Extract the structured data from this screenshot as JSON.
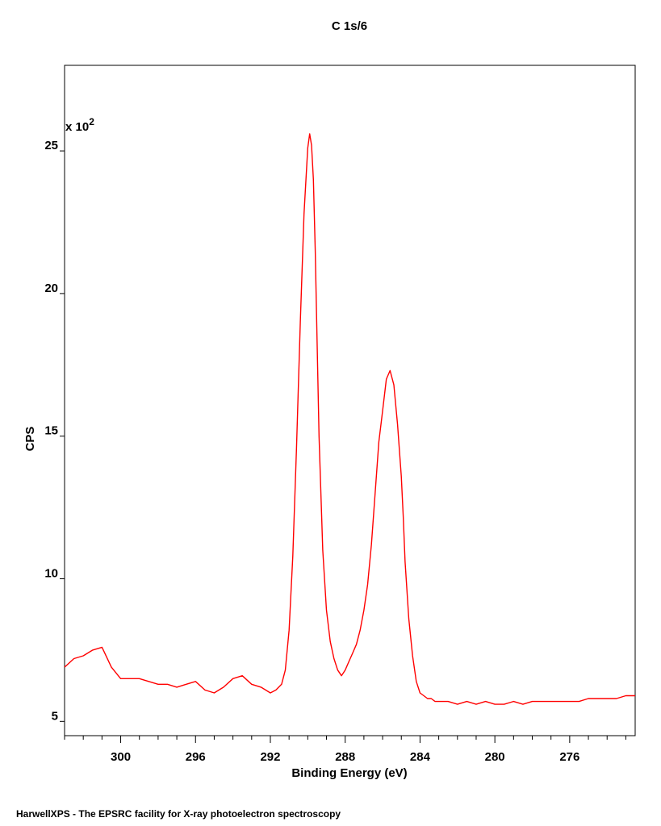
{
  "chart_data": {
    "type": "line",
    "title": "C 1s/6",
    "xlabel": "Binding Energy (eV)",
    "ylabel": "CPS",
    "y_multiplier_base": "x 10",
    "y_multiplier_exp": "2",
    "xlim": [
      303.0,
      272.5
    ],
    "ylim": [
      4.5,
      28.0
    ],
    "x_ticks": [
      300,
      296,
      292,
      288,
      284,
      280,
      276
    ],
    "x_tick_labels": [
      "300",
      "296",
      "292",
      "288",
      "284",
      "280",
      "276"
    ],
    "y_ticks": [
      5,
      10,
      15,
      20,
      25
    ],
    "y_tick_labels": [
      "5",
      "10",
      "15",
      "20",
      "25"
    ],
    "grid": false,
    "series": [
      {
        "color": "#ff0000",
        "x": [
          303.0,
          302.5,
          302.0,
          301.5,
          301.0,
          300.5,
          300.0,
          299.5,
          299.0,
          298.5,
          298.0,
          297.5,
          297.0,
          296.5,
          296.0,
          295.5,
          295.0,
          294.5,
          294.0,
          293.5,
          293.0,
          292.5,
          292.0,
          291.7,
          291.4,
          291.2,
          291.0,
          290.8,
          290.6,
          290.4,
          290.2,
          290.0,
          289.9,
          289.8,
          289.7,
          289.6,
          289.5,
          289.4,
          289.2,
          289.0,
          288.8,
          288.6,
          288.4,
          288.2,
          288.0,
          287.8,
          287.6,
          287.4,
          287.2,
          287.0,
          286.8,
          286.6,
          286.4,
          286.2,
          286.0,
          285.8,
          285.6,
          285.4,
          285.2,
          285.0,
          284.9,
          284.8,
          284.6,
          284.4,
          284.2,
          284.0,
          283.8,
          283.6,
          283.4,
          283.2,
          283.0,
          282.5,
          282.0,
          281.5,
          281.0,
          280.5,
          280.0,
          279.5,
          279.0,
          278.5,
          278.0,
          277.5,
          277.0,
          276.5,
          276.0,
          275.5,
          275.0,
          274.5,
          274.0,
          273.5,
          273.0,
          272.5
        ],
        "y": [
          6.9,
          7.2,
          7.3,
          7.5,
          7.6,
          6.9,
          6.5,
          6.5,
          6.5,
          6.4,
          6.3,
          6.3,
          6.2,
          6.3,
          6.4,
          6.1,
          6.0,
          6.2,
          6.5,
          6.6,
          6.3,
          6.2,
          6.0,
          6.1,
          6.3,
          6.8,
          8.2,
          10.8,
          14.6,
          19.0,
          22.8,
          25.1,
          25.6,
          25.2,
          24.0,
          21.5,
          18.3,
          15.0,
          11.0,
          8.9,
          7.8,
          7.2,
          6.8,
          6.6,
          6.8,
          7.1,
          7.4,
          7.7,
          8.2,
          8.9,
          9.8,
          11.2,
          13.0,
          14.8,
          15.9,
          17.0,
          17.3,
          16.8,
          15.4,
          13.6,
          12.2,
          10.6,
          8.6,
          7.3,
          6.4,
          6.0,
          5.9,
          5.8,
          5.8,
          5.7,
          5.7,
          5.7,
          5.6,
          5.7,
          5.6,
          5.7,
          5.6,
          5.6,
          5.7,
          5.6,
          5.7,
          5.7,
          5.7,
          5.7,
          5.7,
          5.7,
          5.8,
          5.8,
          5.8,
          5.8,
          5.9,
          5.9
        ]
      }
    ]
  },
  "footer": {
    "text": "HarwellXPS - The EPSRC facility for X-ray photoelectron spectroscopy"
  }
}
